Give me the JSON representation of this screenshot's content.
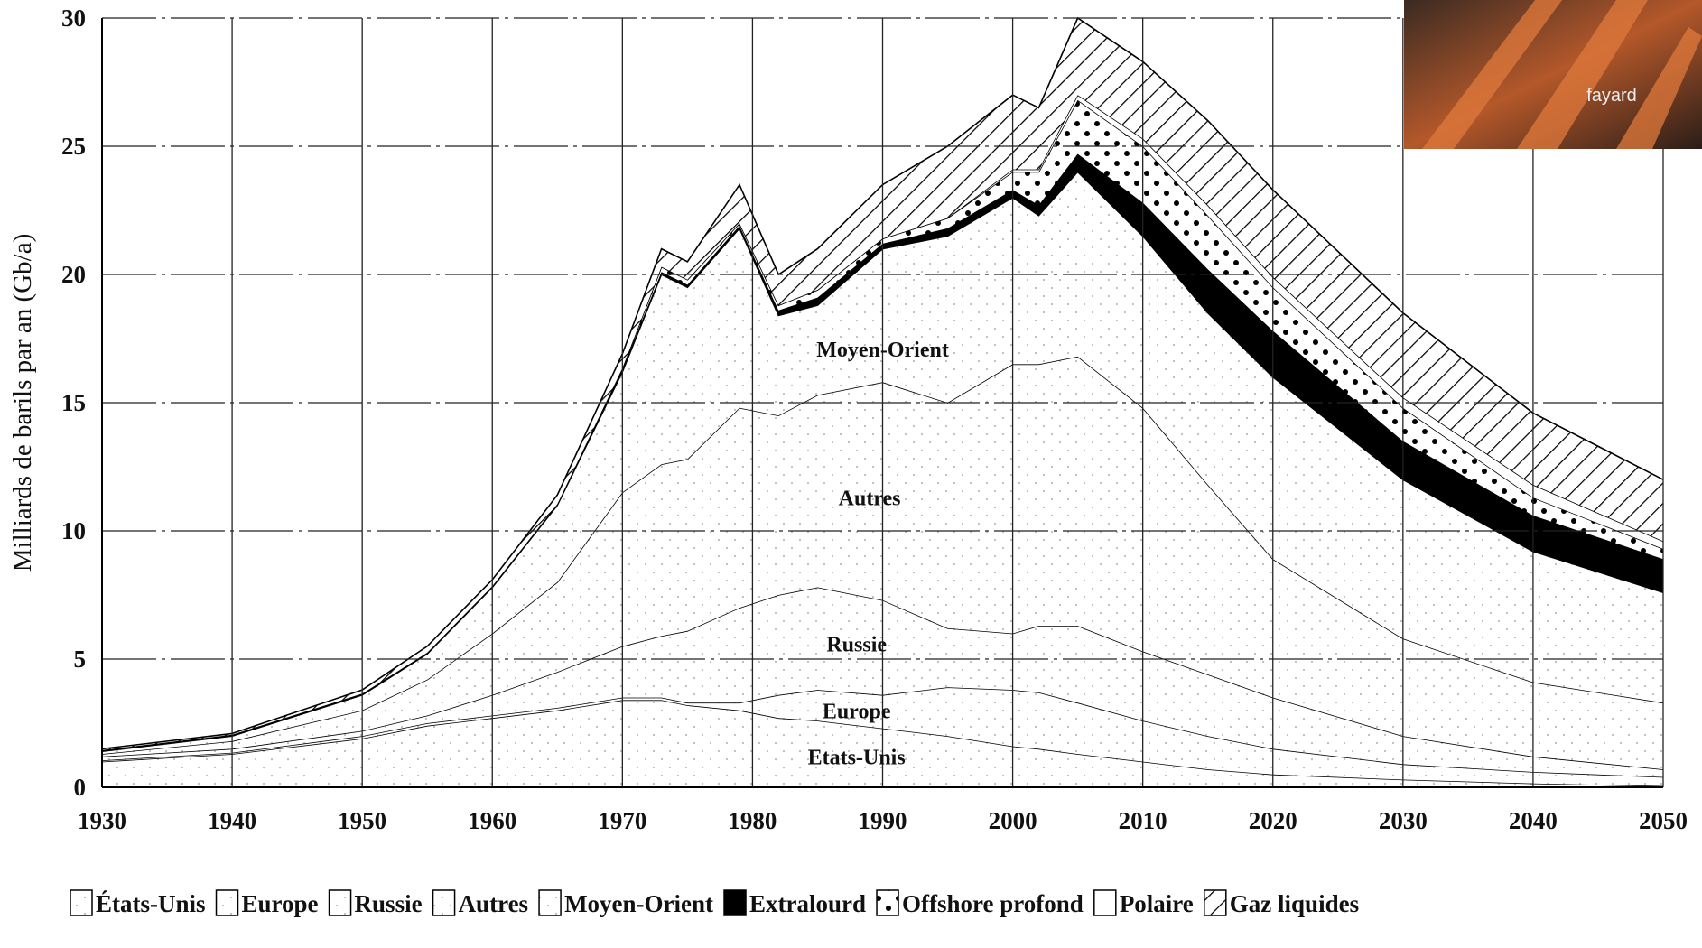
{
  "chart_data": {
    "type": "stacked-area",
    "y_label": "Milliards de barils par an (Gb/a)",
    "x": [
      1930,
      1940,
      1950,
      1955,
      1960,
      1965,
      1970,
      1973,
      1975,
      1979,
      1982,
      1985,
      1990,
      1995,
      2000,
      2002,
      2005,
      2010,
      2015,
      2020,
      2030,
      2040,
      2050
    ],
    "xlim": [
      1930,
      2050
    ],
    "xticks": [
      1930,
      1940,
      1950,
      1960,
      1970,
      1980,
      1990,
      2000,
      2010,
      2020,
      2030,
      2040,
      2050
    ],
    "ylim": [
      0,
      30
    ],
    "yticks": [
      0,
      5,
      10,
      15,
      20,
      25,
      30
    ],
    "grid": true,
    "legend": "bottom",
    "annotations": [
      "Moyen-Orient",
      "Autres",
      "Russie",
      "Europe",
      "Etats-Unis"
    ],
    "series": [
      {
        "name": "États-Unis",
        "color": "#ffffff",
        "fill": "dots-light",
        "values": [
          1.0,
          1.3,
          1.9,
          2.4,
          2.7,
          3.0,
          3.4,
          3.4,
          3.2,
          3.0,
          2.7,
          2.6,
          2.3,
          2.0,
          1.6,
          1.5,
          1.3,
          1.0,
          0.7,
          0.5,
          0.3,
          0.15,
          0.05
        ]
      },
      {
        "name": "Europe",
        "color": "#ffffff",
        "fill": "dots-light",
        "values": [
          0.05,
          0.05,
          0.1,
          0.1,
          0.1,
          0.1,
          0.1,
          0.1,
          0.1,
          0.3,
          0.9,
          1.2,
          1.3,
          1.9,
          2.2,
          2.2,
          2.0,
          1.6,
          1.3,
          1.0,
          0.6,
          0.45,
          0.35
        ]
      },
      {
        "name": "Russie",
        "color": "#ffffff",
        "fill": "dots-light",
        "values": [
          0.15,
          0.15,
          0.2,
          0.3,
          0.8,
          1.4,
          2.0,
          2.4,
          2.8,
          3.7,
          3.9,
          4.0,
          3.7,
          2.3,
          2.2,
          2.6,
          3.0,
          2.7,
          2.4,
          2.0,
          1.1,
          0.6,
          0.3
        ]
      },
      {
        "name": "Autres",
        "color": "#ffffff",
        "fill": "dots-light",
        "values": [
          0.1,
          0.3,
          0.8,
          1.4,
          2.4,
          3.5,
          6.0,
          6.7,
          6.7,
          7.8,
          7.0,
          7.5,
          8.5,
          8.8,
          10.5,
          10.2,
          10.5,
          9.5,
          7.4,
          5.4,
          3.8,
          2.9,
          2.6
        ]
      },
      {
        "name": "Moyen-Orient",
        "color": "#ffffff",
        "fill": "dots-light",
        "values": [
          0.1,
          0.2,
          0.6,
          1.0,
          1.8,
          3.0,
          4.7,
          7.4,
          6.7,
          7.0,
          3.9,
          3.5,
          5.2,
          6.5,
          6.5,
          5.8,
          7.2,
          6.7,
          6.7,
          7.1,
          6.2,
          5.1,
          4.3
        ]
      },
      {
        "name": "Extralourd",
        "color": "#000000",
        "fill": "solid",
        "values": [
          0.05,
          0.05,
          0.05,
          0.05,
          0.05,
          0.05,
          0.1,
          0.1,
          0.1,
          0.1,
          0.2,
          0.3,
          0.2,
          0.3,
          0.3,
          0.4,
          0.7,
          1.3,
          1.7,
          1.8,
          1.5,
          1.4,
          1.3
        ]
      },
      {
        "name": "Offshore profond",
        "color": "#000000",
        "fill": "dots-bold",
        "values": [
          0,
          0,
          0,
          0,
          0,
          0,
          0.05,
          0.2,
          0.2,
          0.1,
          0.2,
          0.3,
          0.2,
          0.4,
          0.7,
          1.3,
          2.1,
          2.2,
          2.1,
          1.7,
          1.3,
          0.7,
          0.4
        ]
      },
      {
        "name": "Polaire",
        "color": "#ffffff",
        "fill": "plain",
        "values": [
          0,
          0,
          0,
          0,
          0,
          0,
          0,
          0,
          0,
          0,
          0,
          0,
          0,
          0,
          0.1,
          0.1,
          0.2,
          0.3,
          0.4,
          0.4,
          0.4,
          0.5,
          0.3
        ]
      },
      {
        "name": "Gaz liquides",
        "color": "#000000",
        "fill": "hatch",
        "values": [
          0.05,
          0.05,
          0.15,
          0.25,
          0.25,
          0.35,
          0.55,
          0.7,
          0.7,
          1.5,
          1.2,
          1.6,
          2.1,
          2.8,
          2.9,
          2.4,
          3.0,
          3.0,
          3.3,
          3.4,
          3.3,
          2.8,
          2.4
        ]
      }
    ]
  },
  "cover": {
    "text": "fayard"
  }
}
